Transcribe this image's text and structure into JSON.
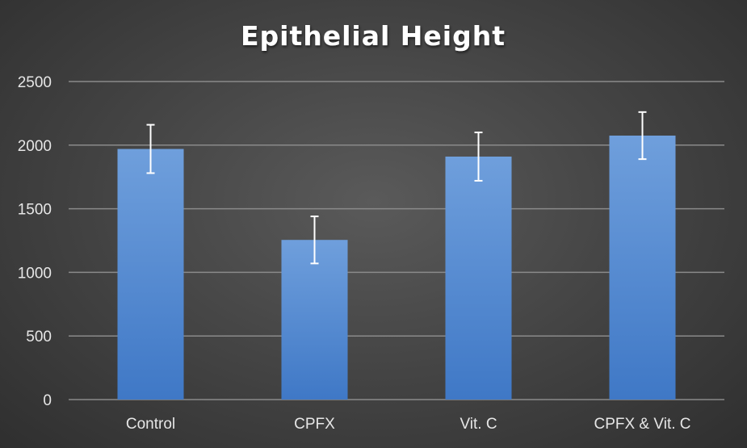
{
  "chart_data": {
    "type": "bar",
    "title": "Epithelial Height",
    "categories": [
      "Control",
      "CPFX",
      "Vit. C",
      "CPFX & Vit. C"
    ],
    "values": [
      1970,
      1255,
      1910,
      2075
    ],
    "error": [
      190,
      185,
      190,
      185
    ],
    "ylim": [
      0,
      2500
    ],
    "yticks": [
      0,
      500,
      1000,
      1500,
      2000,
      2500
    ],
    "xlabel": "",
    "ylabel": "",
    "grid": true,
    "legend": "none",
    "colors": {
      "bar_top": "#6f9fdc",
      "bar_bottom": "#3f78c6",
      "error_bar": "#ffffff",
      "grid": "#8a8a8a"
    }
  }
}
